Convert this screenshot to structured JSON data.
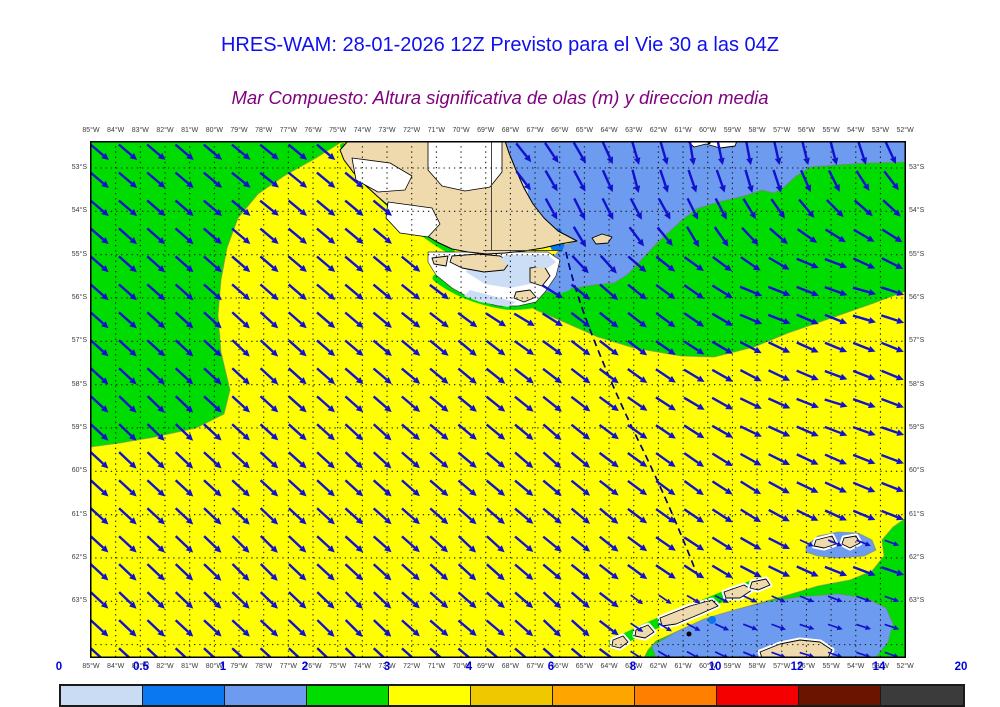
{
  "header": {
    "title": "HRES-WAM: 28-01-2026 12Z Previsto para el Vie 30 a las 04Z",
    "subtitle": "Mar Compuesto: Altura significativa de olas (m) y direccion media",
    "title_color": "#0f0fef",
    "subtitle_color": "#800080"
  },
  "map": {
    "lon_labels": [
      "85°W",
      "84°W",
      "83°W",
      "82°W",
      "81°W",
      "80°W",
      "79°W",
      "78°W",
      "77°W",
      "76°W",
      "75°W",
      "74°W",
      "73°W",
      "72°W",
      "71°W",
      "70°W",
      "69°W",
      "68°W",
      "67°W",
      "66°W",
      "65°W",
      "64°W",
      "63°W",
      "62°W",
      "61°W",
      "60°W",
      "59°W",
      "58°W",
      "57°W",
      "56°W",
      "55°W",
      "54°W",
      "53°W",
      "52°W"
    ],
    "lat_labels": [
      "53°S",
      "54°S",
      "55°S",
      "56°S",
      "57°S",
      "58°S",
      "59°S",
      "60°S",
      "61°S",
      "62°S",
      "63°S"
    ],
    "axis_text_color": "#3c3c3c",
    "arrow_color": "#1212cc",
    "track_line_color": "#00008b",
    "region_colors": {
      "waves_3_4m": "#ffff00",
      "waves_2_3m": "#00dc00",
      "waves_1_2m": "#6d9bf0",
      "waves_05_1m": "#0877f0",
      "waves_0_05m": "#cbdef5",
      "land": "#efdaae",
      "no_data_channels": "#ffffff",
      "coastline": "#000000"
    }
  },
  "colorbar": {
    "values": [
      "0",
      "0.5",
      "1",
      "2",
      "3",
      "4",
      "6",
      "8",
      "10",
      "12",
      "14",
      "20"
    ],
    "segment_colors": [
      "#c9dcf3",
      "#0a78f0",
      "#6d9bf0",
      "#00dc00",
      "#ffff00",
      "#f0c800",
      "#ffa500",
      "#ff8000",
      "#f50000",
      "#6b1400",
      "#3b3b3b"
    ],
    "value_color": "#0000e0"
  },
  "chart_data": {
    "type": "heatmap",
    "title": "HRES-WAM: 28-01-2026 12Z Previsto para el Vie 30 a las 04Z",
    "subtitle": "Mar Compuesto: Altura significativa de olas (m) y direccion media",
    "variable": "Altura significativa de olas (m)",
    "vector_overlay": "direccion media",
    "lon_range_deg_w": [
      85,
      52
    ],
    "lat_range_deg_s": [
      53,
      63
    ],
    "colorbar_boundaries_m": [
      0,
      0.5,
      1,
      2,
      3,
      4,
      6,
      8,
      10,
      12,
      14,
      20
    ],
    "colorbar_colors": [
      "#c9dcf3",
      "#0a78f0",
      "#6d9bf0",
      "#00dc00",
      "#ffff00",
      "#f0c800",
      "#ffa500",
      "#ff8000",
      "#f50000",
      "#6b1400",
      "#3b3b3b"
    ],
    "field_summary": {
      "pacific_west_open_ocean": "3-4 m, waves toward SE",
      "pacific_northwest_patch": "2-3 m, waves toward SE",
      "atlantic_northeast": "1-2 m, waves toward S",
      "scotia_sea_mid_east_band": "2-3 m, waves toward E",
      "southeast_corner_shetlands": "1-3 m, waves toward E",
      "tierra_del_fuego_coastal": "0-1 m"
    }
  }
}
